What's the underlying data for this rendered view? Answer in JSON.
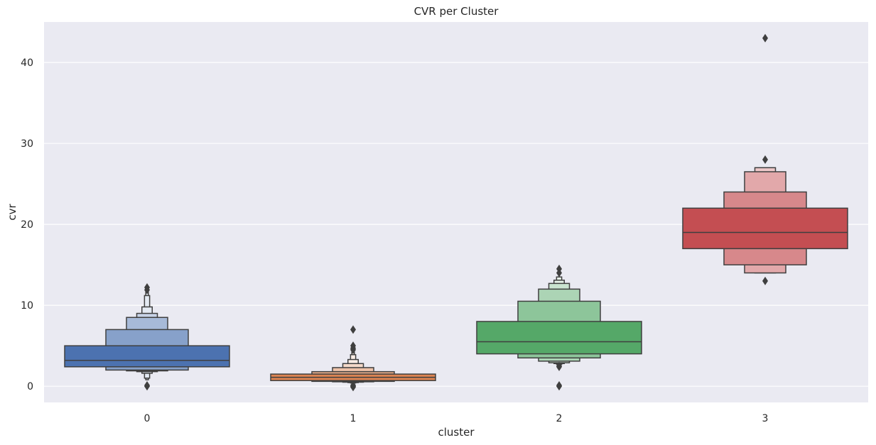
{
  "chart_data": {
    "type": "boxen",
    "title": "CVR per Cluster",
    "xlabel": "cluster",
    "ylabel": "cvr",
    "categories": [
      "0",
      "1",
      "2",
      "3"
    ],
    "ylim": [
      -2,
      45
    ],
    "yticks": [
      0,
      10,
      20,
      30,
      40
    ],
    "grid": true,
    "colors": [
      "#4c72b0",
      "#dd8452",
      "#55a868",
      "#c44e52"
    ],
    "series": [
      {
        "category": "0",
        "median": 3.2,
        "boxes": [
          [
            2.4,
            5.0
          ],
          [
            2.0,
            7.0
          ],
          [
            1.9,
            8.5
          ],
          [
            1.8,
            9.0
          ],
          [
            1.6,
            9.8
          ],
          [
            1.0,
            11.2
          ],
          [
            0.8,
            11.8
          ]
        ],
        "outliers": [
          12.2,
          11.9,
          0.0,
          0.1
        ]
      },
      {
        "category": "1",
        "median": 1.1,
        "boxes": [
          [
            0.7,
            1.5
          ],
          [
            0.6,
            1.8
          ],
          [
            0.55,
            2.3
          ],
          [
            0.5,
            2.8
          ],
          [
            0.45,
            3.3
          ],
          [
            0.4,
            3.9
          ],
          [
            0.35,
            4.2
          ]
        ],
        "outliers": [
          7.0,
          5.0,
          4.7,
          4.5,
          0.1,
          -0.1,
          0.0
        ]
      },
      {
        "category": "2",
        "median": 5.5,
        "boxes": [
          [
            4.0,
            8.0
          ],
          [
            3.5,
            10.5
          ],
          [
            3.1,
            12.0
          ],
          [
            2.9,
            12.7
          ],
          [
            2.8,
            13.1
          ],
          [
            2.7,
            13.5
          ]
        ],
        "outliers": [
          14.5,
          14.0,
          2.5,
          2.4,
          0.0,
          0.1
        ]
      },
      {
        "category": "3",
        "median": 19.0,
        "boxes": [
          [
            17.0,
            22.0
          ],
          [
            15.0,
            24.0
          ],
          [
            14.0,
            26.5
          ],
          [
            14.0,
            27.0
          ]
        ],
        "outliers": [
          43.0,
          28.0,
          13.0
        ]
      }
    ]
  }
}
